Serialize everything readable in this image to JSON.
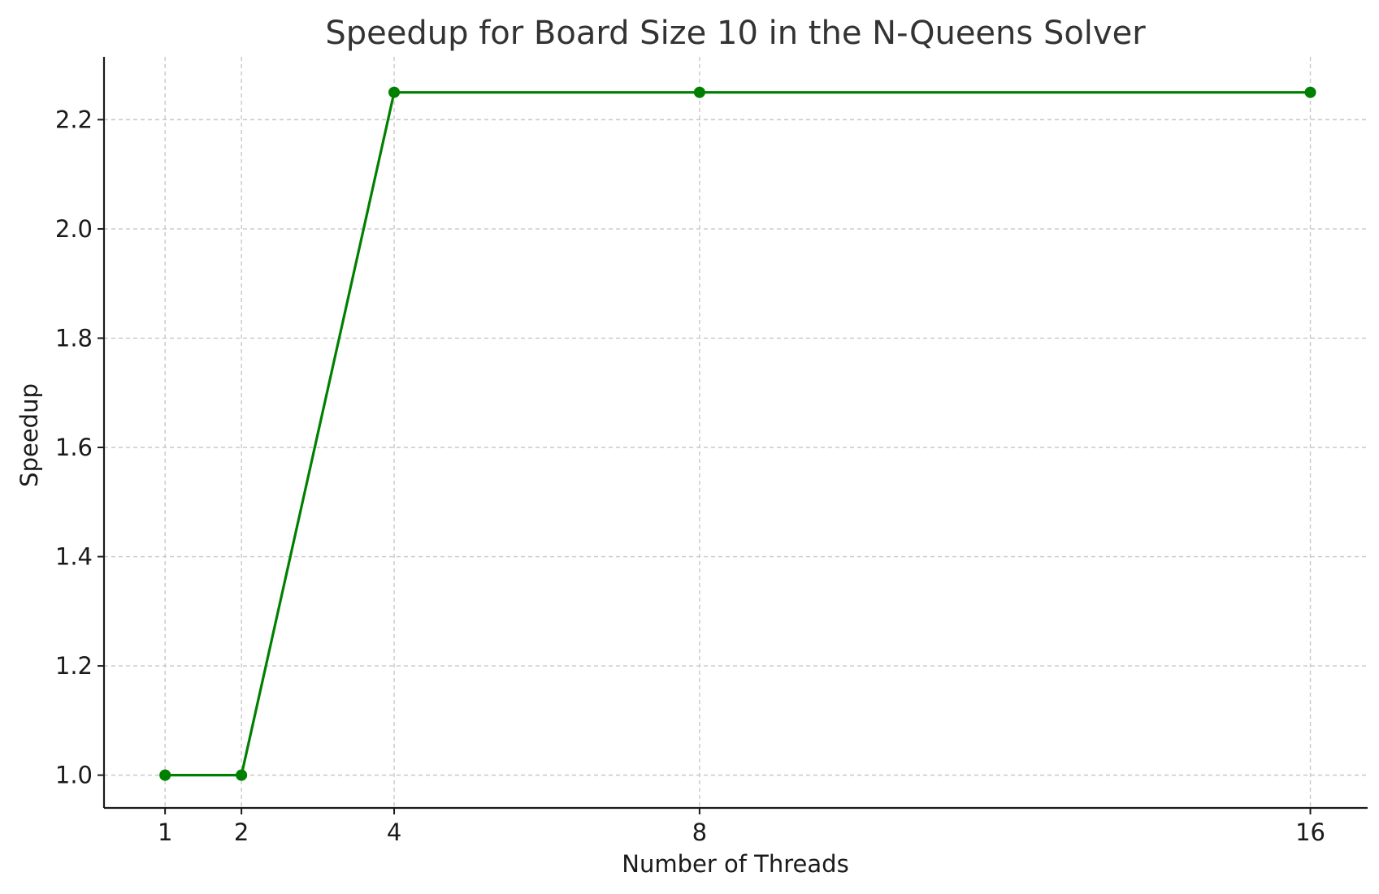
{
  "chart_data": {
    "type": "line",
    "title": "Speedup for Board Size 10 in the N-Queens Solver",
    "xlabel": "Number of Threads",
    "ylabel": "Speedup",
    "x": [
      1,
      2,
      4,
      8,
      16
    ],
    "xticks": [
      1,
      2,
      4,
      8,
      16
    ],
    "xtick_labels": [
      "1",
      "2",
      "4",
      "8",
      "16"
    ],
    "xlim": [
      0.2,
      16.75
    ],
    "yticks": [
      1.0,
      1.2,
      1.4,
      1.6,
      1.8,
      2.0,
      2.2
    ],
    "ytick_labels": [
      "1.0",
      "1.2",
      "1.4",
      "1.6",
      "1.8",
      "2.0",
      "2.2"
    ],
    "ylim": [
      0.94,
      2.315
    ],
    "series": [
      {
        "values": [
          1.0,
          1.0,
          2.25,
          2.25,
          2.25
        ],
        "color": "#008000",
        "marker": "circle"
      }
    ],
    "grid": true
  }
}
